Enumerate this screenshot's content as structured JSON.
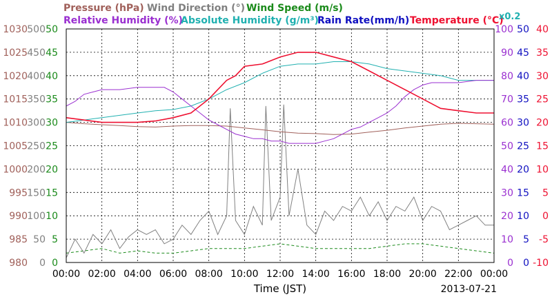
{
  "chart_data": {
    "type": "line",
    "date": "2013-07-21",
    "xlabel": "Time (JST)",
    "x_ticks": [
      "00:00",
      "02:00",
      "04:00",
      "06:00",
      "08:00",
      "10:00",
      "12:00",
      "14:00",
      "16:00",
      "18:00",
      "20:00",
      "22:00",
      "00:00"
    ],
    "header": {
      "row1": [
        {
          "label": "Pressure (hPa)",
          "color": "#a0605a"
        },
        {
          "label": "Wind Direction (°)",
          "color": "#808080"
        },
        {
          "label": "Wind Speed (m/s)",
          "color": "#1a8a1a"
        }
      ],
      "row2": [
        {
          "label": "Relative Humidity (%)",
          "color": "#9a2fd0"
        },
        {
          "label": "Absolute Humidity (g/m³)",
          "color": "#20b0b0"
        },
        {
          "label": "Rain Rate(mm/h)",
          "color": "#1010c0"
        },
        {
          "label": "Temperature (°C)",
          "color": "#ee1030"
        }
      ],
      "multiplier": {
        "label": "x0.2",
        "color": "#20b0b0"
      }
    },
    "axes": {
      "pressure": {
        "ticks": [
          "1030",
          "1025",
          "1020",
          "1015",
          "1010",
          "1005",
          "1000",
          "995",
          "990",
          "985",
          "980"
        ],
        "range": [
          980,
          1030
        ],
        "color": "#a0605a"
      },
      "wind_speed": {
        "ticks": [
          "50",
          "45",
          "40",
          "35",
          "30",
          "25",
          "20",
          "15",
          "10",
          "5",
          "0"
        ],
        "range": [
          0,
          50
        ],
        "color": "#1a8a1a"
      },
      "wind_dir": {
        "ticks": [
          "500",
          "450",
          "400",
          "350",
          "300",
          "250",
          "200",
          "150",
          "100",
          "50",
          "0"
        ],
        "range": [
          0,
          500
        ],
        "color": "#808080"
      },
      "humidity": {
        "ticks": [
          "100",
          "90",
          "80",
          "70",
          "60",
          "50",
          "40",
          "30",
          "20",
          "10",
          "0"
        ],
        "range": [
          0,
          100
        ],
        "color": "#9a2fd0"
      },
      "rain": {
        "ticks": [
          "50",
          "45",
          "40",
          "35",
          "30",
          "25",
          "20",
          "15",
          "10",
          "5",
          "0"
        ],
        "range": [
          0,
          50
        ],
        "color": "#1010c0"
      },
      "temperature": {
        "ticks": [
          "40",
          "35",
          "30",
          "25",
          "20",
          "15",
          "10",
          "5",
          "0",
          "-5",
          "-10"
        ],
        "range": [
          -10,
          40
        ],
        "color": "#ee1030"
      }
    },
    "grid": true,
    "series": [
      {
        "name": "Pressure (hPa)",
        "color": "#a0605a",
        "x": [
          0,
          1,
          2,
          3,
          4,
          5,
          6,
          7,
          8,
          9,
          10,
          11,
          12,
          13,
          14,
          15,
          16,
          17,
          18,
          19,
          20,
          21,
          22,
          23,
          24
        ],
        "y": [
          1010,
          1009.7,
          1009.5,
          1009.3,
          1009.1,
          1009,
          1009.2,
          1009.3,
          1009.3,
          1009.2,
          1008.8,
          1008.4,
          1008,
          1007.7,
          1007.6,
          1007.4,
          1007.5,
          1007.9,
          1008.3,
          1008.8,
          1009.2,
          1009.6,
          1009.8,
          1009.7,
          1009.6
        ]
      },
      {
        "name": "Relative Humidity (%)",
        "color": "#9a2fd0",
        "x": [
          0,
          0.5,
          1,
          1.5,
          2,
          3,
          4,
          5,
          5.5,
          6,
          6.5,
          7,
          7.5,
          8,
          8.5,
          9,
          9.5,
          10,
          10.5,
          11,
          11.5,
          12,
          12.5,
          13,
          13.5,
          14,
          14.5,
          15,
          15.5,
          16,
          16.5,
          17,
          17.5,
          18,
          18.5,
          19,
          19.5,
          20,
          20.5,
          21,
          21.5,
          22,
          23,
          24
        ],
        "y": [
          67,
          69,
          72,
          73,
          74,
          74,
          75,
          75,
          75,
          73,
          70,
          67,
          64,
          61,
          59,
          57,
          55,
          54,
          53,
          53,
          52,
          52,
          51,
          51,
          51,
          51,
          52,
          53,
          55,
          57,
          58,
          60,
          62,
          64,
          67,
          71,
          74,
          76,
          77,
          77,
          77,
          77,
          78,
          78
        ]
      },
      {
        "name": "Absolute Humidity (g/m³)",
        "color": "#20b0b0",
        "x": [
          0,
          1,
          2,
          3,
          4,
          5,
          6,
          7,
          8,
          9,
          10,
          11,
          12,
          13,
          14,
          15,
          16,
          17,
          18,
          19,
          20,
          21,
          22,
          23,
          24
        ],
        "y": [
          60,
          61,
          62,
          63,
          64,
          65,
          65.5,
          67,
          70,
          74,
          77,
          81,
          84,
          85,
          85,
          86,
          86,
          85,
          83,
          82,
          81,
          80,
          78,
          78,
          78
        ]
      },
      {
        "name": "Rain Rate(mm/h)",
        "color": "#1010c0",
        "x": [
          0,
          24
        ],
        "y": [
          0,
          0
        ]
      },
      {
        "name": "Temperature (°C)",
        "color": "#ee1030",
        "x": [
          0,
          1,
          2,
          3,
          4,
          5,
          6,
          7,
          8,
          8.5,
          9,
          9.5,
          10,
          11,
          12,
          13,
          14,
          15,
          16,
          17,
          18,
          19,
          20,
          21,
          22,
          23,
          24
        ],
        "y": [
          21,
          20.5,
          20,
          20,
          20,
          20.3,
          21,
          22,
          25,
          27,
          29,
          30,
          32,
          32.5,
          34,
          35,
          35,
          34,
          33,
          31,
          29,
          27,
          25,
          23,
          22.5,
          22,
          22
        ]
      },
      {
        "name": "Wind Direction (°)",
        "color": "#808080",
        "x": [
          0,
          0.5,
          1,
          1.5,
          2,
          2.5,
          3,
          3.5,
          4,
          4.5,
          5,
          5.5,
          6,
          6.5,
          7,
          7.5,
          8,
          8.5,
          9,
          9.2,
          9.5,
          10,
          10.5,
          11,
          11.2,
          11.5,
          12,
          12.2,
          12.5,
          13,
          13.5,
          14,
          14.5,
          15,
          15.5,
          16,
          16.5,
          17,
          17.5,
          18,
          18.5,
          19,
          19.5,
          20,
          20.5,
          21,
          21.5,
          22,
          22.5,
          23,
          23.5,
          24
        ],
        "y": [
          10,
          50,
          20,
          60,
          40,
          70,
          30,
          55,
          70,
          60,
          70,
          40,
          50,
          80,
          60,
          90,
          110,
          60,
          100,
          330,
          90,
          60,
          120,
          80,
          335,
          90,
          140,
          338,
          100,
          200,
          80,
          60,
          110,
          90,
          120,
          110,
          140,
          100,
          130,
          90,
          120,
          110,
          140,
          90,
          120,
          110,
          70,
          80,
          90,
          100,
          80,
          80
        ]
      },
      {
        "name": "Wind Speed (m/s)",
        "color": "#1a8a1a",
        "x": [
          0,
          1,
          2,
          3,
          4,
          5,
          6,
          7,
          8,
          9,
          10,
          11,
          12,
          13,
          14,
          15,
          16,
          17,
          18,
          19,
          20,
          21,
          22,
          23,
          24
        ],
        "y": [
          2,
          2.5,
          3,
          2,
          2.5,
          2,
          2,
          2.5,
          3,
          3,
          3,
          3.5,
          4,
          3.5,
          3,
          3,
          3,
          3,
          3.5,
          4,
          4,
          3.5,
          3,
          2.5,
          2
        ]
      }
    ]
  }
}
